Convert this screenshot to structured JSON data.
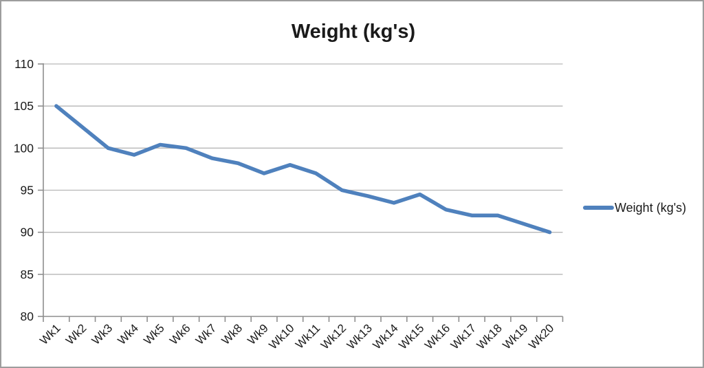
{
  "chart_data": {
    "type": "line",
    "title": "Weight (kg's)",
    "legend": "Weight (kg's)",
    "legend_position": "right",
    "categories": [
      "Wk1",
      "Wk2",
      "Wk3",
      "Wk4",
      "Wk5",
      "Wk6",
      "Wk7",
      "Wk8",
      "Wk9",
      "Wk10",
      "Wk11",
      "Wk12",
      "Wk13",
      "Wk14",
      "Wk15",
      "Wk16",
      "Wk17",
      "Wk18",
      "Wk19",
      "Wk20"
    ],
    "series": [
      {
        "name": "Weight (kg's)",
        "values": [
          105,
          102.5,
          100,
          99.2,
          100.4,
          100,
          98.8,
          98.2,
          97,
          98,
          97,
          95,
          94.3,
          93.5,
          94.5,
          92.7,
          92,
          92,
          91,
          90
        ]
      }
    ],
    "xlabel": "",
    "ylabel": "",
    "ylim": [
      80,
      110
    ],
    "y_ticks": [
      80,
      85,
      90,
      95,
      100,
      105,
      110
    ],
    "grid": true,
    "x_label_rotation_deg": -45,
    "colors": {
      "line": "#4f81bd",
      "gridline": "#b6b6b6",
      "axis": "#8e8e8e",
      "text": "#1a1a1a",
      "border": "#9d9d9d",
      "background": "#ffffff"
    }
  }
}
